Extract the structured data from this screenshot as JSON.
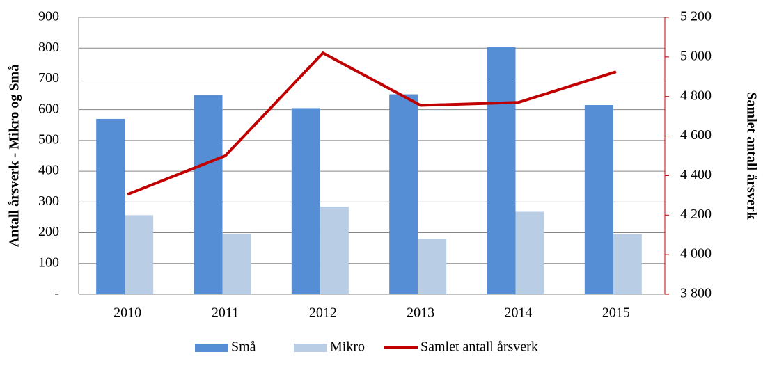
{
  "chart_data": {
    "type": "bar",
    "y_label": "Antall årsverk - Mikro og Små",
    "y2_label": "Samlet antall årsverk",
    "categories": [
      "2010",
      "2011",
      "2012",
      "2013",
      "2014",
      "2015"
    ],
    "series": [
      {
        "name": "Små",
        "color": "#558ed5",
        "values": [
          570,
          648,
          605,
          650,
          803,
          615
        ]
      },
      {
        "name": "Mikro",
        "color": "#b9cde5",
        "values": [
          257,
          197,
          285,
          180,
          268,
          195
        ]
      },
      {
        "name": "Samlet antall årsverk",
        "color": "#c00000",
        "type": "line",
        "axis": "y2",
        "values": [
          4305,
          4500,
          5020,
          4755,
          4770,
          4925
        ]
      }
    ],
    "ylim": [
      0,
      900
    ],
    "yticks": [
      {
        "value": 0,
        "label": "-"
      },
      100,
      200,
      300,
      400,
      500,
      600,
      700,
      800,
      900
    ],
    "y2lim": [
      3800,
      5200
    ],
    "y2ticks": [
      {
        "value": 3800,
        "label": "3 800"
      },
      {
        "value": 4000,
        "label": "4 000"
      },
      {
        "value": 4200,
        "label": "4 200"
      },
      {
        "value": 4400,
        "label": "4 400"
      },
      {
        "value": 4600,
        "label": "4 600"
      },
      {
        "value": 4800,
        "label": "4 800"
      },
      {
        "value": 5000,
        "label": "5 000"
      },
      {
        "value": 5200,
        "label": "5 200"
      }
    ],
    "grid": true,
    "legend": "bottom"
  }
}
